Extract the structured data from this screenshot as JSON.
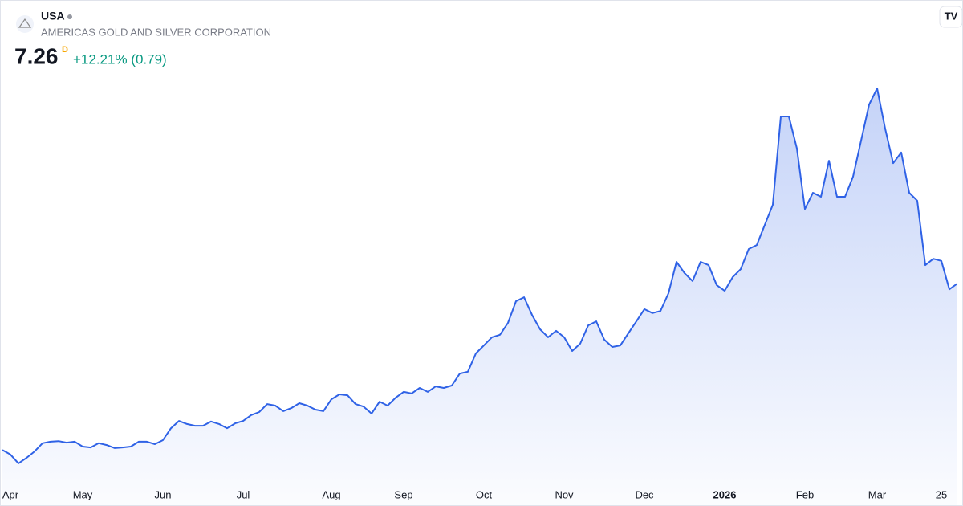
{
  "header": {
    "symbol": "USA",
    "name": "AMERICAS GOLD AND SILVER CORPORATION",
    "price": 7.26,
    "interval": "D",
    "change": "+12.21% (0.79)"
  },
  "chart_data": {
    "type": "area",
    "color": "#2f62e6",
    "categories": [
      null,
      "Apr",
      null,
      null,
      null,
      null,
      null,
      null,
      null,
      null,
      "May",
      null,
      null,
      null,
      null,
      null,
      null,
      null,
      null,
      null,
      "Jun",
      null,
      null,
      null,
      null,
      null,
      null,
      null,
      null,
      null,
      "Jul",
      null,
      null,
      null,
      null,
      null,
      null,
      null,
      null,
      null,
      null,
      "Aug",
      null,
      null,
      null,
      null,
      null,
      null,
      null,
      null,
      "Sep",
      null,
      null,
      null,
      null,
      null,
      null,
      null,
      null,
      null,
      "Oct",
      null,
      null,
      null,
      null,
      null,
      null,
      null,
      null,
      null,
      "Nov",
      null,
      null,
      null,
      null,
      null,
      null,
      null,
      null,
      null,
      "Dec",
      null,
      null,
      null,
      null,
      null,
      null,
      null,
      null,
      null,
      "2026",
      null,
      null,
      null,
      null,
      null,
      null,
      null,
      null,
      null,
      "Feb",
      null,
      null,
      null,
      null,
      null,
      null,
      null,
      null,
      "Mar",
      null,
      null,
      null,
      null,
      null,
      null,
      null,
      "25",
      null,
      null
    ],
    "values": [
      1.81,
      1.66,
      1.37,
      1.55,
      1.76,
      2.03,
      2.08,
      2.1,
      2.05,
      2.08,
      1.92,
      1.89,
      2.03,
      1.97,
      1.87,
      1.89,
      1.92,
      2.08,
      2.08,
      2.0,
      2.13,
      2.52,
      2.76,
      2.66,
      2.6,
      2.6,
      2.74,
      2.66,
      2.52,
      2.68,
      2.76,
      2.95,
      3.05,
      3.31,
      3.26,
      3.08,
      3.18,
      3.34,
      3.26,
      3.13,
      3.08,
      3.47,
      3.63,
      3.6,
      3.31,
      3.23,
      3.0,
      3.39,
      3.26,
      3.52,
      3.71,
      3.66,
      3.84,
      3.71,
      3.89,
      3.84,
      3.92,
      4.31,
      4.37,
      4.97,
      5.23,
      5.5,
      5.58,
      5.97,
      6.68,
      6.81,
      6.23,
      5.76,
      5.5,
      5.71,
      5.5,
      5.05,
      5.29,
      5.89,
      6.02,
      5.42,
      5.18,
      5.23,
      5.63,
      6.02,
      6.42,
      6.29,
      6.36,
      6.94,
      7.97,
      7.6,
      7.34,
      7.97,
      7.86,
      7.21,
      7.02,
      7.47,
      7.73,
      8.39,
      8.52,
      9.18,
      9.84,
      12.73,
      12.73,
      11.68,
      9.7,
      10.23,
      10.1,
      11.28,
      10.1,
      10.1,
      10.76,
      11.94,
      13.12,
      13.65,
      12.33,
      11.2,
      11.55,
      10.23,
      9.97,
      7.86,
      8.07,
      8.0,
      7.07,
      7.26
    ]
  }
}
